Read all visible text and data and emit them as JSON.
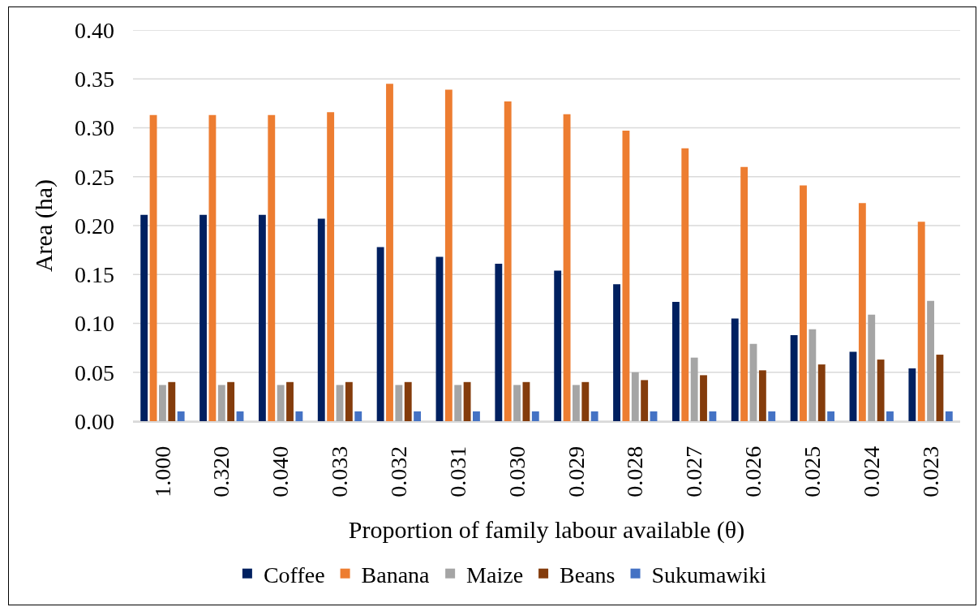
{
  "chart_data": {
    "type": "bar",
    "xlabel": "Proportion of family labour available (θ)",
    "ylabel": "Area (ha)",
    "categories": [
      "1.000",
      "0.320",
      "0.040",
      "0.033",
      "0.032",
      "0.031",
      "0.030",
      "0.029",
      "0.028",
      "0.027",
      "0.026",
      "0.025",
      "0.024",
      "0.023"
    ],
    "series": [
      {
        "name": "Coffee",
        "color": "#002060",
        "values": [
          0.211,
          0.211,
          0.211,
          0.207,
          0.178,
          0.168,
          0.161,
          0.154,
          0.14,
          0.122,
          0.105,
          0.088,
          0.071,
          0.054
        ]
      },
      {
        "name": "Banana",
        "color": "#ed7d31",
        "values": [
          0.313,
          0.313,
          0.313,
          0.316,
          0.345,
          0.339,
          0.327,
          0.314,
          0.297,
          0.279,
          0.26,
          0.241,
          0.223,
          0.204
        ]
      },
      {
        "name": "Maize",
        "color": "#a5a5a5",
        "values": [
          0.037,
          0.037,
          0.037,
          0.037,
          0.037,
          0.037,
          0.037,
          0.037,
          0.05,
          0.065,
          0.079,
          0.094,
          0.109,
          0.123
        ]
      },
      {
        "name": "Beans",
        "color": "#843c0c",
        "values": [
          0.04,
          0.04,
          0.04,
          0.04,
          0.04,
          0.04,
          0.04,
          0.04,
          0.042,
          0.047,
          0.052,
          0.058,
          0.063,
          0.068
        ]
      },
      {
        "name": "Sukumawiki",
        "color": "#4472c4",
        "values": [
          0.01,
          0.01,
          0.01,
          0.01,
          0.01,
          0.01,
          0.01,
          0.01,
          0.01,
          0.01,
          0.01,
          0.01,
          0.01,
          0.01
        ]
      }
    ],
    "ylim": [
      0,
      0.4
    ],
    "yticks": [
      {
        "value": 0,
        "label": "0.00"
      },
      {
        "value": 0.05,
        "label": "0.05"
      },
      {
        "value": 0.1,
        "label": "0.10"
      },
      {
        "value": 0.15,
        "label": "0.15"
      },
      {
        "value": 0.2,
        "label": "0.20"
      },
      {
        "value": 0.25,
        "label": "0.25"
      },
      {
        "value": 0.3,
        "label": "0.30"
      },
      {
        "value": 0.35,
        "label": "0.35"
      },
      {
        "value": 0.4,
        "label": "0.40"
      }
    ],
    "grid": "y",
    "legend": "bottom"
  }
}
